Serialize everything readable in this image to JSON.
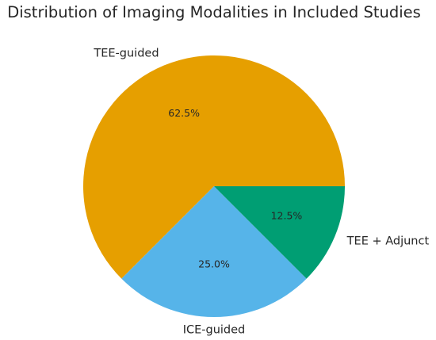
{
  "chart_data": {
    "type": "pie",
    "title": "Distribution of Imaging Modalities in Included Studies",
    "categories": [
      "TEE-guided",
      "ICE-guided",
      "TEE + Adjunct"
    ],
    "values": [
      62.5,
      25.0,
      12.5
    ],
    "percent_labels": [
      "62.5%",
      "25.0%",
      "12.5%"
    ],
    "colors": [
      "#E69F00",
      "#56B4E9",
      "#009E73"
    ],
    "start_angle_deg": 0,
    "direction": "counterclockwise",
    "legend": "none"
  }
}
